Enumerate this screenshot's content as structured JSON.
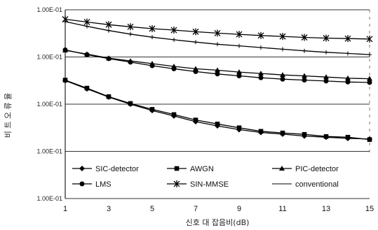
{
  "chart_data": {
    "type": "line",
    "xlabel": "신호 대 잡음비(dB)",
    "ylabel": "비 트 오 류 율",
    "x": [
      1,
      2,
      3,
      4,
      5,
      6,
      7,
      8,
      9,
      10,
      11,
      12,
      13,
      14,
      15
    ],
    "x_ticks": [
      "1",
      "3",
      "5",
      "7",
      "9",
      "11",
      "13",
      "15"
    ],
    "y_ticks": [
      "1.00E-01",
      "1.00E-01",
      "1.00E-01",
      "1.00E-01",
      "1.00E-01"
    ],
    "grid": "horizontal",
    "legend_position": "bottom-inside",
    "series": [
      {
        "name": "SIC-detector",
        "marker": "diamond",
        "color": "#000000",
        "values": [
          5.0,
          4.65,
          4.3,
          4.0,
          3.73,
          3.5,
          3.26,
          3.08,
          2.92,
          2.8,
          2.73,
          2.65,
          2.6,
          2.55,
          2.52
        ]
      },
      {
        "name": "AWGN",
        "marker": "square",
        "color": "#000000",
        "values": [
          5.02,
          4.68,
          4.32,
          4.03,
          3.78,
          3.56,
          3.33,
          3.16,
          3.0,
          2.85,
          2.78,
          2.72,
          2.63,
          2.6,
          2.5
        ]
      },
      {
        "name": "PIC-detector",
        "marker": "triangle",
        "color": "#000000",
        "values": [
          6.28,
          6.12,
          5.95,
          5.83,
          5.72,
          5.6,
          5.5,
          5.44,
          5.36,
          5.3,
          5.24,
          5.2,
          5.15,
          5.1,
          5.08
        ]
      },
      {
        "name": "LMS",
        "marker": "circle",
        "color": "#000000",
        "values": [
          6.3,
          6.1,
          5.93,
          5.78,
          5.63,
          5.5,
          5.38,
          5.28,
          5.2,
          5.12,
          5.06,
          5.02,
          4.98,
          4.94,
          4.92
        ]
      },
      {
        "name": "SIN-MMSE",
        "marker": "star",
        "color": "#000000",
        "values": [
          7.6,
          7.48,
          7.37,
          7.28,
          7.2,
          7.14,
          7.07,
          7.01,
          6.96,
          6.91,
          6.87,
          6.83,
          6.8,
          6.78,
          6.76
        ]
      },
      {
        "name": "conventional",
        "marker": "plus",
        "color": "#000000",
        "values": [
          7.5,
          7.3,
          7.12,
          6.97,
          6.84,
          6.73,
          6.63,
          6.54,
          6.47,
          6.4,
          6.33,
          6.26,
          6.2,
          6.15,
          6.1
        ]
      }
    ]
  }
}
